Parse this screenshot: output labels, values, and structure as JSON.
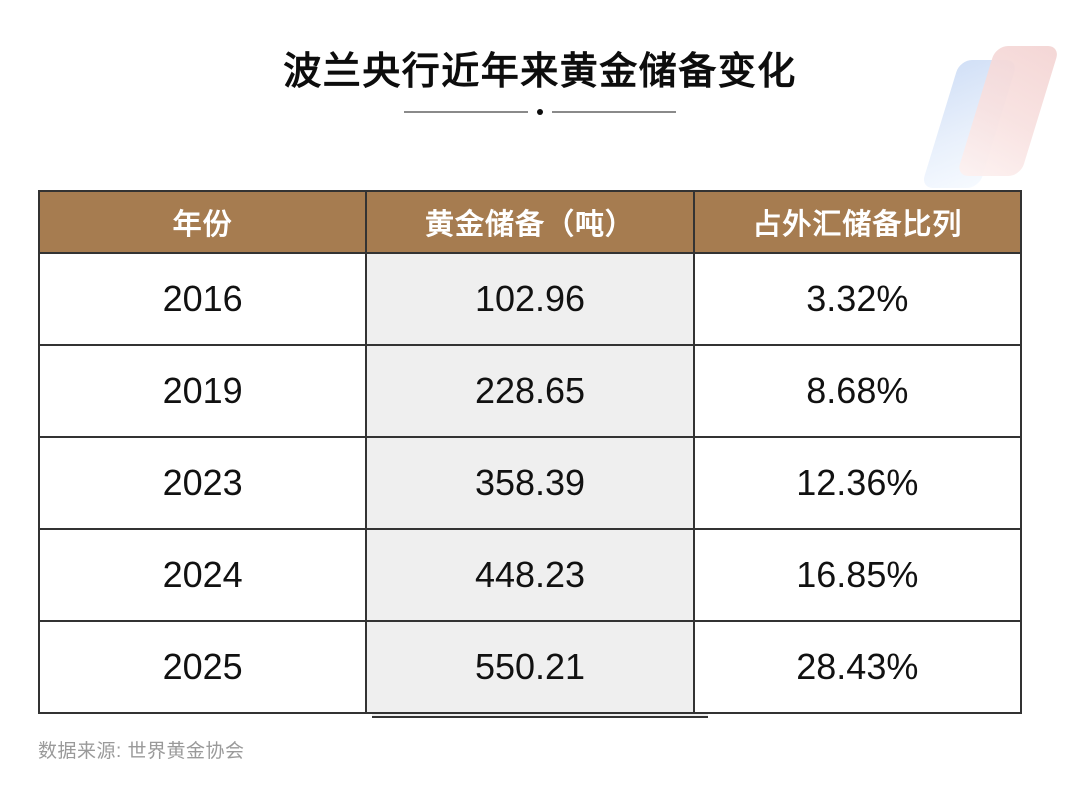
{
  "page": {
    "title": "波兰央行近年来黄金储备变化",
    "source_note": "数据来源: 世界黄金协会"
  },
  "chart_data": {
    "type": "table",
    "title": "波兰央行近年来黄金储备变化",
    "columns": [
      "年份",
      "黄金储备（吨）",
      "占外汇储备比列"
    ],
    "rows": [
      [
        "2016",
        "102.96",
        "3.32%"
      ],
      [
        "2019",
        "228.65",
        "8.68%"
      ],
      [
        "2023",
        "358.39",
        "12.36%"
      ],
      [
        "2024",
        "448.23",
        "16.85%"
      ],
      [
        "2025",
        "550.21",
        "28.43%"
      ]
    ],
    "highlighted_column": "黄金储备（吨）",
    "source": "数据来源: 世界黄金协会"
  },
  "colors": {
    "header_bg": "#A67C50",
    "header_text": "#FFFFFF",
    "highlight_col_bg": "#EFEFEF",
    "border": "#333333",
    "footer_text": "#9A9A9A",
    "logo_blue": "#CFDEF6",
    "logo_pink": "#F3D3D2"
  }
}
